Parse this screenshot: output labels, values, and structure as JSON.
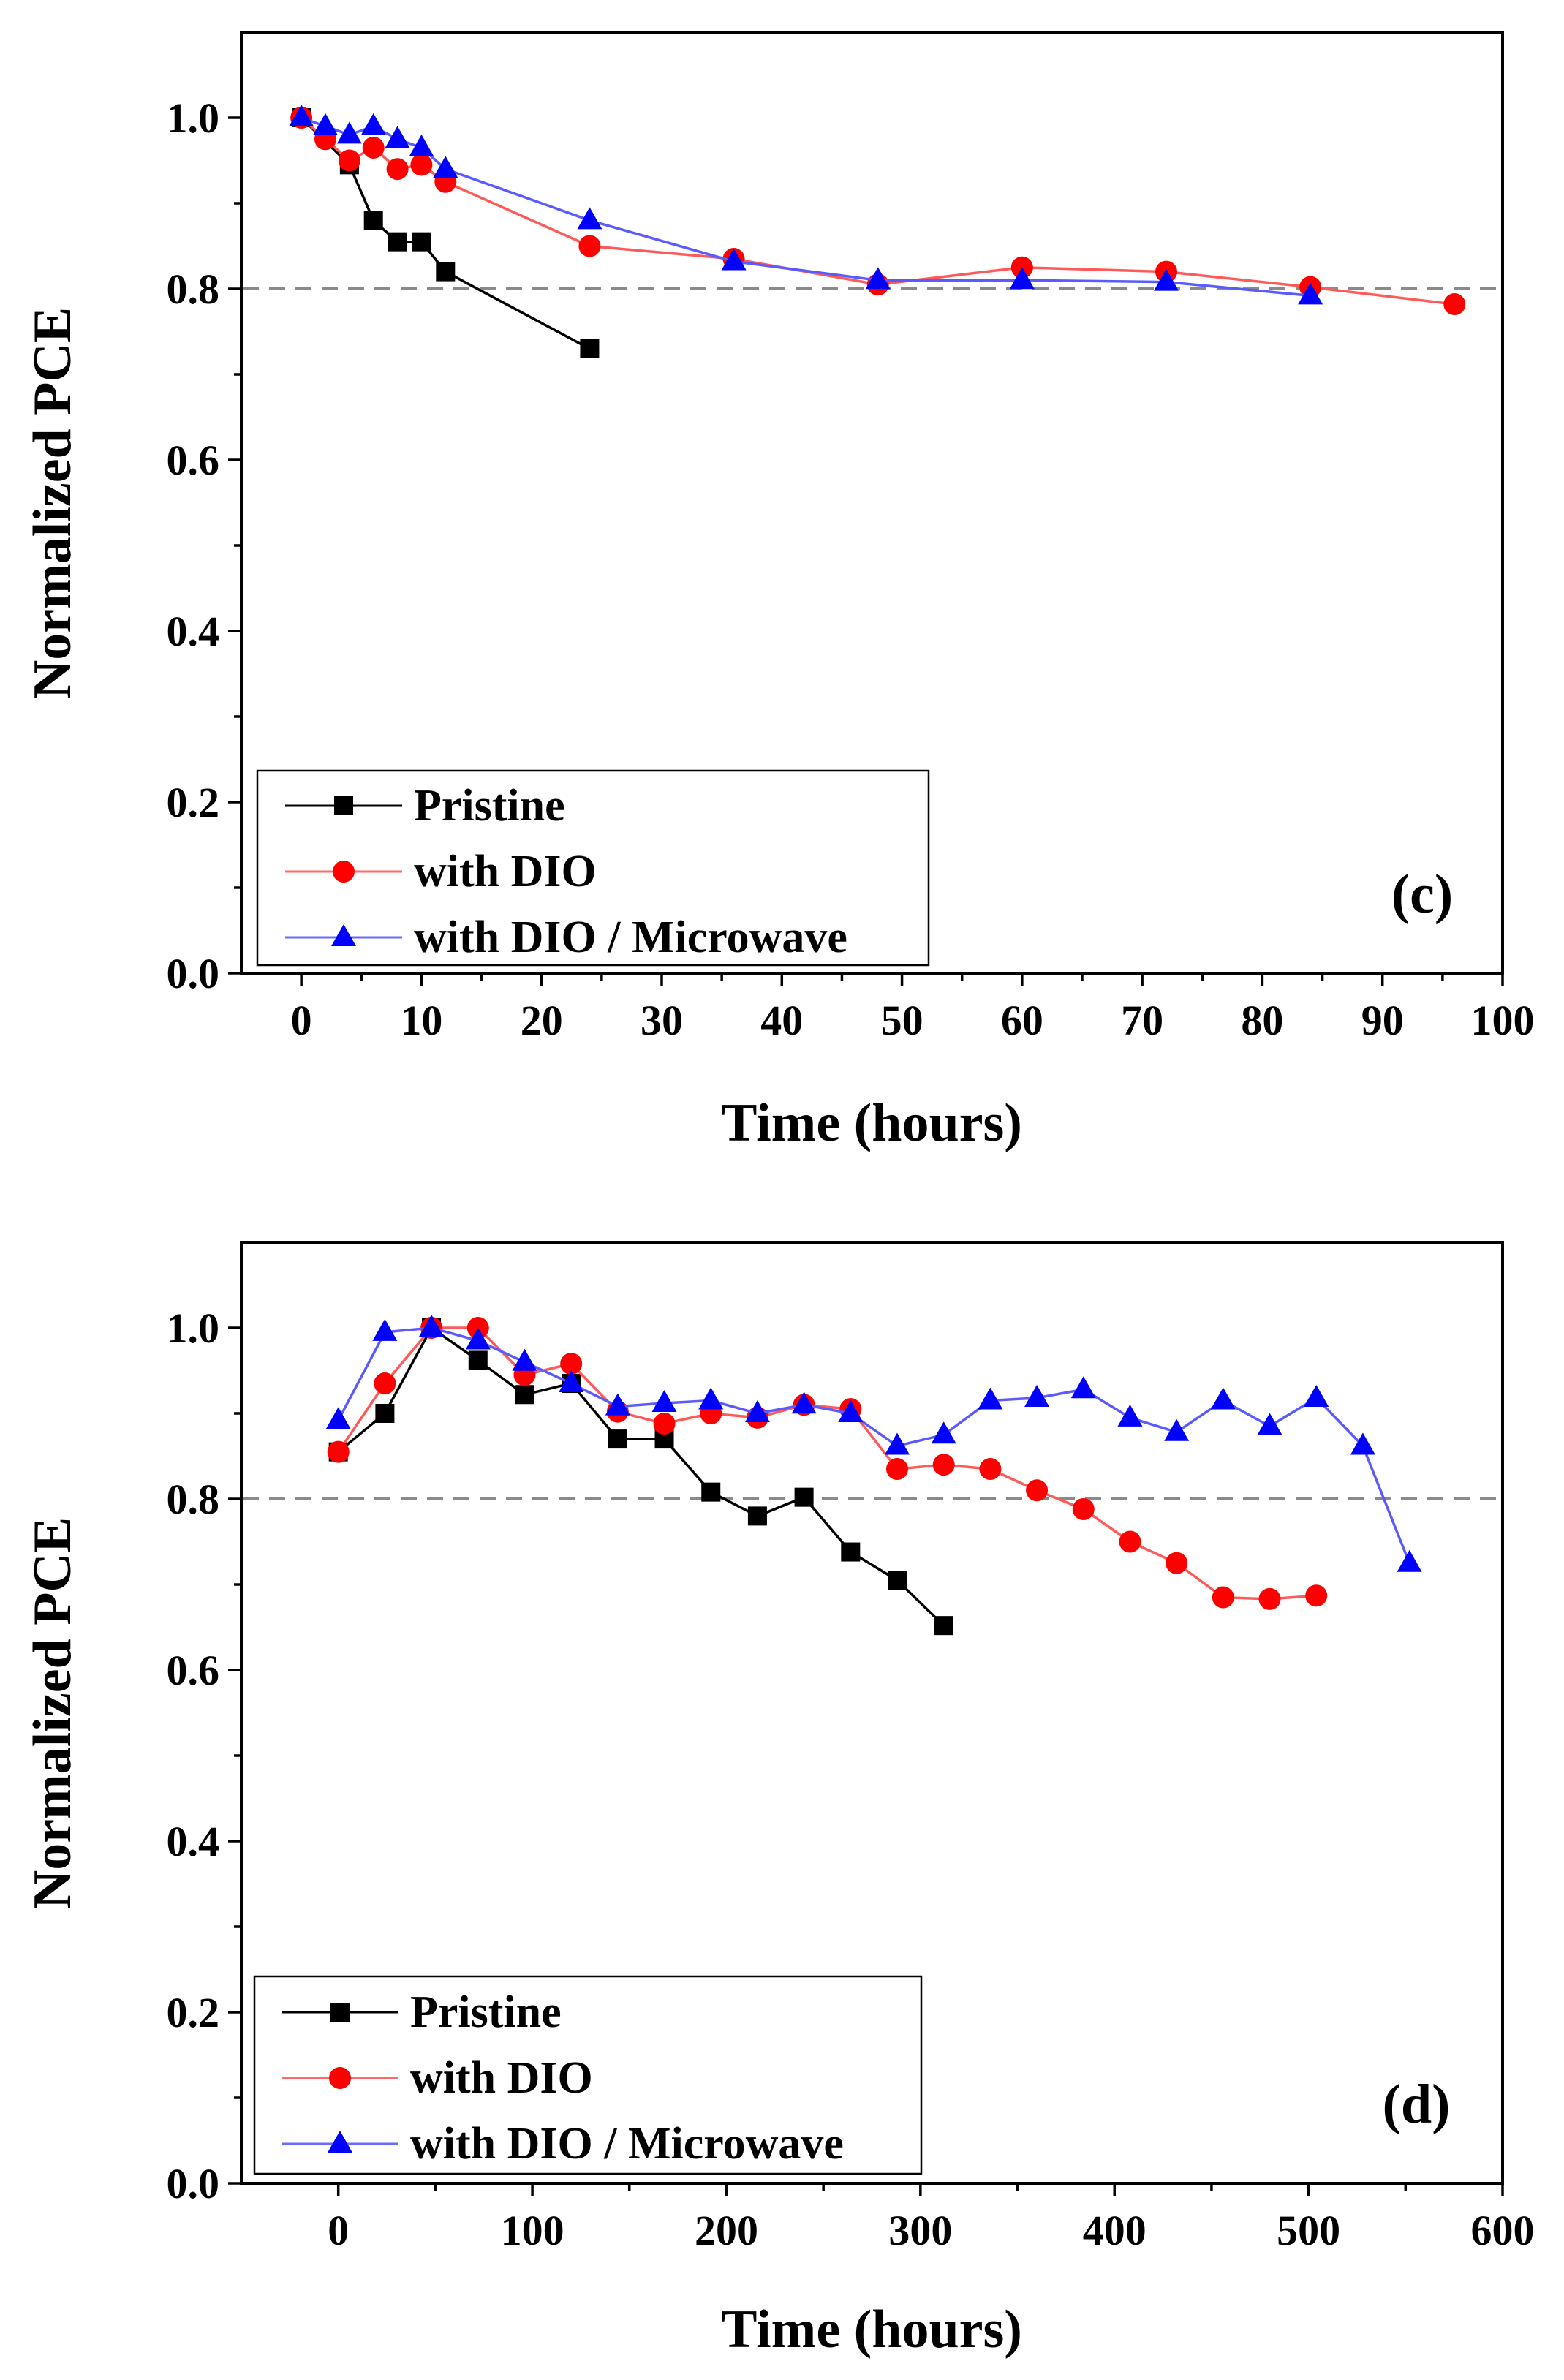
{
  "chart_data": [
    {
      "type": "line",
      "panel_label": "(c)",
      "xlabel": "Time (hours)",
      "ylabel": "Normalized PCE",
      "xlim": [
        -5,
        100
      ],
      "ylim": [
        0.0,
        1.1
      ],
      "xticks": [
        0,
        10,
        20,
        30,
        40,
        50,
        60,
        70,
        80,
        90,
        100
      ],
      "xtick_labels": [
        "0",
        "10",
        "20",
        "30",
        "40",
        "50",
        "60",
        "70",
        "80",
        "90",
        "100"
      ],
      "yticks": [
        0.0,
        0.2,
        0.4,
        0.6,
        0.8,
        1.0
      ],
      "ytick_labels": [
        "0.0",
        "0.2",
        "0.4",
        "0.6",
        "0.8",
        "1.0"
      ],
      "reference_line": 0.8,
      "legend_position": "bottom-left",
      "series": [
        {
          "name": "Pristine",
          "color": "#000000",
          "marker": "square",
          "x": [
            0,
            4,
            6,
            8,
            10,
            12,
            24
          ],
          "y": [
            1.0,
            0.945,
            0.88,
            0.855,
            0.855,
            0.82,
            0.73
          ]
        },
        {
          "name": "with DIO",
          "color": "#ff0000",
          "marker": "circle",
          "x": [
            0,
            2,
            4,
            6,
            8,
            10,
            12,
            24,
            36,
            48,
            60,
            72,
            84,
            96
          ],
          "y": [
            1.0,
            0.975,
            0.95,
            0.965,
            0.94,
            0.945,
            0.925,
            0.85,
            0.835,
            0.805,
            0.825,
            0.82,
            0.802,
            0.782
          ]
        },
        {
          "name": "with DIO / Microwave",
          "color": "#0000ff",
          "marker": "triangle",
          "x": [
            0,
            2,
            4,
            6,
            8,
            10,
            12,
            24,
            36,
            48,
            60,
            72,
            84
          ],
          "y": [
            1.0,
            0.99,
            0.98,
            0.99,
            0.975,
            0.965,
            0.94,
            0.88,
            0.832,
            0.81,
            0.81,
            0.808,
            0.792
          ]
        }
      ]
    },
    {
      "type": "line",
      "panel_label": "(d)",
      "xlabel": "Time (hours)",
      "ylabel": "Normalized PCE",
      "xlim": [
        -50,
        600
      ],
      "ylim": [
        0.0,
        1.1
      ],
      "xticks": [
        0,
        100,
        200,
        300,
        400,
        500,
        600
      ],
      "xtick_labels": [
        "0",
        "100",
        "200",
        "300",
        "400",
        "500",
        "600"
      ],
      "yticks": [
        0.0,
        0.2,
        0.4,
        0.6,
        0.8,
        1.0
      ],
      "ytick_labels": [
        "0.0",
        "0.2",
        "0.4",
        "0.6",
        "0.8",
        "1.0"
      ],
      "reference_line": 0.8,
      "legend_position": "bottom-left",
      "series": [
        {
          "name": "Pristine",
          "color": "#000000",
          "marker": "square",
          "x": [
            0,
            24,
            48,
            72,
            96,
            120,
            144,
            168,
            192,
            216,
            240,
            264,
            288,
            312
          ],
          "y": [
            0.855,
            0.9,
            1.0,
            0.962,
            0.922,
            0.935,
            0.87,
            0.87,
            0.808,
            0.78,
            0.802,
            0.738,
            0.705,
            0.652
          ]
        },
        {
          "name": "with DIO",
          "color": "#ff0000",
          "marker": "circle",
          "x": [
            0,
            24,
            48,
            72,
            96,
            120,
            144,
            168,
            192,
            216,
            240,
            264,
            288,
            312,
            336,
            360,
            384,
            408,
            432,
            456,
            480,
            504
          ],
          "y": [
            0.855,
            0.935,
            1.0,
            1.0,
            0.945,
            0.958,
            0.902,
            0.888,
            0.9,
            0.895,
            0.91,
            0.905,
            0.835,
            0.84,
            0.835,
            0.81,
            0.788,
            0.75,
            0.725,
            0.685,
            0.683,
            0.687
          ]
        },
        {
          "name": "with DIO / Microwave",
          "color": "#0000ff",
          "marker": "triangle",
          "x": [
            0,
            24,
            48,
            72,
            96,
            120,
            144,
            168,
            192,
            216,
            240,
            264,
            288,
            312,
            336,
            360,
            384,
            408,
            432,
            456,
            480,
            504,
            528,
            552
          ],
          "y": [
            0.892,
            0.995,
            1.0,
            0.985,
            0.96,
            0.935,
            0.908,
            0.912,
            0.915,
            0.9,
            0.91,
            0.9,
            0.862,
            0.875,
            0.915,
            0.918,
            0.928,
            0.895,
            0.878,
            0.915,
            0.885,
            0.918,
            0.862,
            0.725
          ]
        }
      ]
    }
  ]
}
